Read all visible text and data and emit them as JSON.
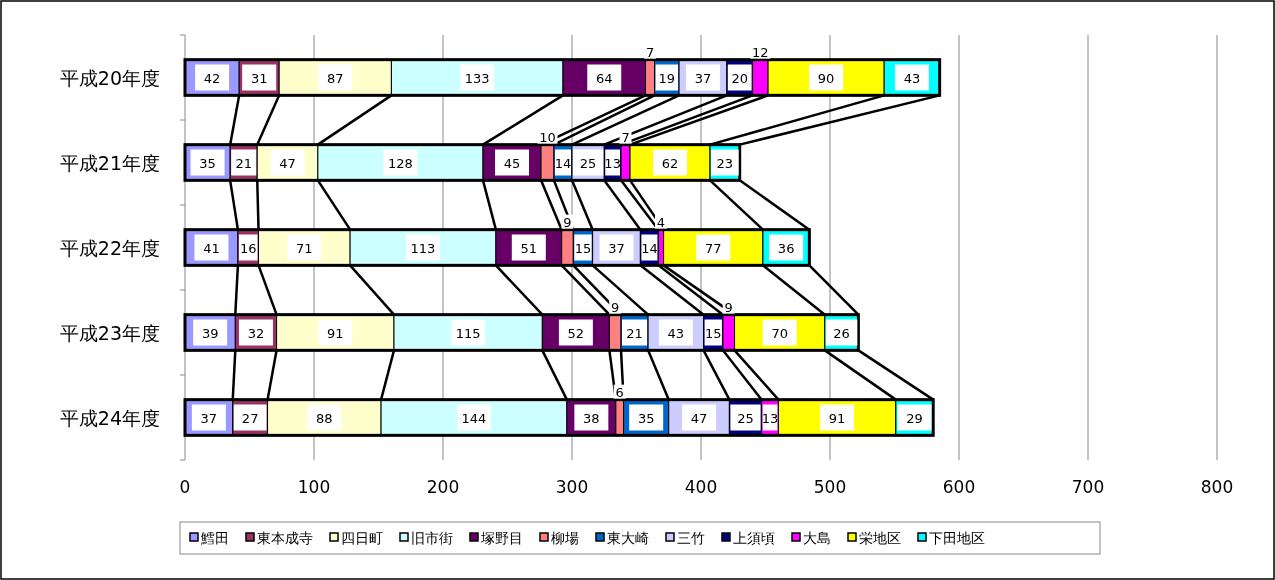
{
  "chart_data": {
    "type": "bar",
    "orientation": "horizontal",
    "stacked": true,
    "data_labels": true,
    "grid": "x",
    "legend": "bottom",
    "categories": [
      "平成20年度",
      "平成21年度",
      "平成22年度",
      "平成23年度",
      "平成24年度"
    ],
    "xlim": [
      0,
      800
    ],
    "xticks": [
      0,
      100,
      200,
      300,
      400,
      500,
      600,
      700,
      800
    ],
    "series": [
      {
        "name": "鱈田",
        "color": "#9999ff",
        "values": [
          42,
          35,
          41,
          39,
          37
        ]
      },
      {
        "name": "東本成寺",
        "color": "#993366",
        "values": [
          31,
          21,
          16,
          32,
          27
        ]
      },
      {
        "name": "四日町",
        "color": "#ffffcc",
        "values": [
          87,
          47,
          71,
          91,
          88
        ]
      },
      {
        "name": "旧市街",
        "color": "#ccffff",
        "values": [
          133,
          128,
          113,
          115,
          144
        ]
      },
      {
        "name": "塚野目",
        "color": "#660066",
        "values": [
          64,
          45,
          51,
          52,
          38
        ]
      },
      {
        "name": "柳場",
        "color": "#ff8080",
        "values": [
          7,
          10,
          9,
          9,
          6
        ]
      },
      {
        "name": "東大崎",
        "color": "#0066cc",
        "values": [
          19,
          14,
          15,
          21,
          35
        ]
      },
      {
        "name": "三竹",
        "color": "#ccccff",
        "values": [
          37,
          25,
          37,
          43,
          47
        ]
      },
      {
        "name": "上須頃",
        "color": "#000080",
        "values": [
          20,
          13,
          14,
          15,
          25
        ]
      },
      {
        "name": "大島",
        "color": "#ff00ff",
        "values": [
          12,
          7,
          4,
          9,
          13
        ]
      },
      {
        "name": "栄地区",
        "color": "#ffff00",
        "values": [
          90,
          62,
          77,
          70,
          91
        ]
      },
      {
        "name": "下田地区",
        "color": "#00ffff",
        "values": [
          43,
          23,
          36,
          26,
          29
        ]
      }
    ]
  }
}
